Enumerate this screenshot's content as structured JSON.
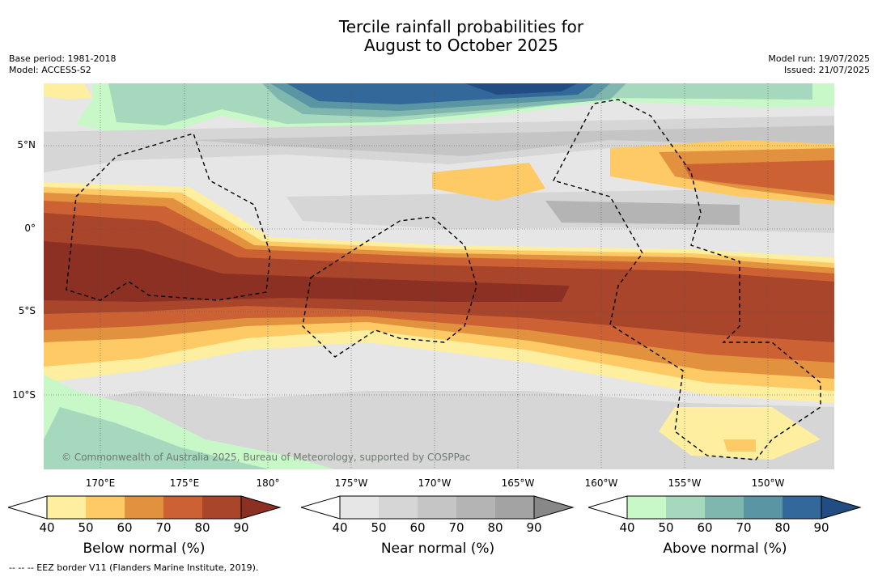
{
  "title": {
    "line1": "Tercile rainfall probabilities for",
    "line2": "August to October 2025"
  },
  "meta_left": {
    "base_period": "Base period: 1981-2018",
    "model": "Model: ACCESS-S2"
  },
  "meta_right": {
    "model_run": "Model run: 19/07/2025",
    "issued": "Issued: 21/07/2025"
  },
  "lat_labels": [
    "5°N",
    "0°",
    "5°S",
    "10°S"
  ],
  "lon_labels": [
    "170°E",
    "175°E",
    "180°",
    "175°W",
    "170°W",
    "165°W",
    "160°W",
    "155°W",
    "150°W"
  ],
  "copyright": "© Commonwealth of Australia 2025, Bureau of Meteorology, supported by COSPPac",
  "colorbars": [
    {
      "title": "Below normal (%)",
      "ticks": [
        "40",
        "50",
        "60",
        "70",
        "80",
        "90"
      ],
      "colors": [
        "#fdeea0",
        "#fdca65",
        "#e2913f",
        "#cc6234",
        "#a9452a",
        "#8b3022"
      ]
    },
    {
      "title": "Near normal (%)",
      "ticks": [
        "40",
        "50",
        "60",
        "70",
        "80",
        "90"
      ],
      "colors": [
        "#e6e6e6",
        "#d6d6d6",
        "#c5c5c5",
        "#b4b4b4",
        "#a3a3a3",
        "#888888"
      ]
    },
    {
      "title": "Above normal (%)",
      "ticks": [
        "40",
        "50",
        "60",
        "70",
        "80",
        "90"
      ],
      "colors": [
        "#c8f8c8",
        "#a5d8bc",
        "#7fb6ad",
        "#5a95a3",
        "#33689a",
        "#214d82"
      ]
    }
  ],
  "footnote": "-- -- -- EEZ border V11 (Flanders Marine Institute, 2019).",
  "colors": {
    "below": [
      "#fdeea0",
      "#fdca65",
      "#e2913f",
      "#cc6234",
      "#a9452a",
      "#8b3022"
    ],
    "near": [
      "#e6e6e6",
      "#d6d6d6",
      "#c5c5c5",
      "#b4b4b4",
      "#a3a3a3"
    ],
    "above": [
      "#c8f8c8",
      "#a5d8bc",
      "#7fb6ad",
      "#5a95a3",
      "#33689a",
      "#214d82"
    ]
  }
}
